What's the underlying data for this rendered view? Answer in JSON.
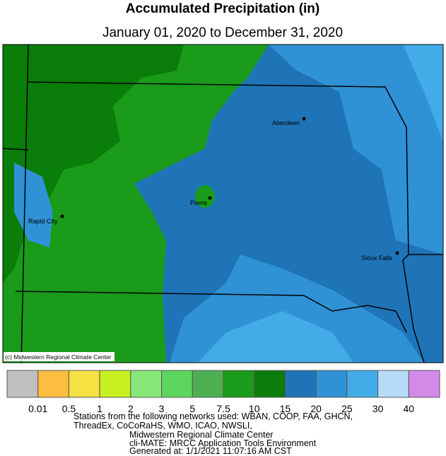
{
  "header": {
    "title": "Accumulated Precipitation (in)",
    "subtitle": "January 01, 2020 to December 31, 2020"
  },
  "map": {
    "cities": [
      "Aberdeen",
      "Pierre",
      "Rapid City",
      "Sioux Falls"
    ],
    "credit": "(c) Midwestern Regional Climate Center"
  },
  "legend": {
    "colors": [
      "#c0c0c0",
      "#fdbd3f",
      "#f5e142",
      "#c8f01e",
      "#87e87a",
      "#5cd65c",
      "#4cb050",
      "#1a9c1a",
      "#0a7d0a",
      "#1f74b8",
      "#2f92d4",
      "#42abe8",
      "#b8dcf8",
      "#d28ae8"
    ],
    "labels": [
      "0.01",
      "0.5",
      "1",
      "2",
      "3",
      "5",
      "7.5",
      "10",
      "15",
      "20",
      "25",
      "30",
      "40"
    ]
  },
  "footer": {
    "lines": [
      "Stations from the following networks used: WBAN, COOP, FAA, GHCN,",
      "ThreadEx, CoCoRaHS, WMO, ICAO, NWSLI,",
      "Midwestern Regional Climate Center",
      "cli-MATE: MRCC Application Tools Environment",
      "Generated at: 1/1/2021 11:07:16 AM CST"
    ]
  }
}
